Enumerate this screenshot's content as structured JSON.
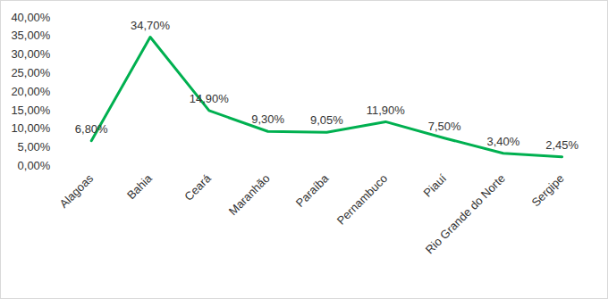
{
  "chart_data": {
    "type": "line",
    "categories": [
      "Alagoas",
      "Bahia",
      "Ceará",
      "Maranhão",
      "Paraíba",
      "Pernambuco",
      "Piauí",
      "Rio Grande do Norte",
      "Sergipe"
    ],
    "values": [
      6.8,
      34.7,
      14.9,
      9.3,
      9.05,
      11.9,
      7.5,
      3.4,
      2.45
    ],
    "value_labels": [
      "6,80%",
      "34,70%",
      "14,90%",
      "9,30%",
      "9,05%",
      "11,90%",
      "7,50%",
      "3,40%",
      "2,45%"
    ],
    "color": "#00b050",
    "ylim": [
      0,
      40
    ],
    "yticks": [
      {
        "value": 0,
        "label": "0,00%"
      },
      {
        "value": 5,
        "label": "5,00%"
      },
      {
        "value": 10,
        "label": "10,00%"
      },
      {
        "value": 15,
        "label": "15,00%"
      },
      {
        "value": 20,
        "label": "20,00%"
      },
      {
        "value": 25,
        "label": "25,00%"
      },
      {
        "value": 30,
        "label": "30,00%"
      },
      {
        "value": 35,
        "label": "35,00%"
      },
      {
        "value": 40,
        "label": "40,00%"
      }
    ],
    "grid": false,
    "data_labels": true
  }
}
